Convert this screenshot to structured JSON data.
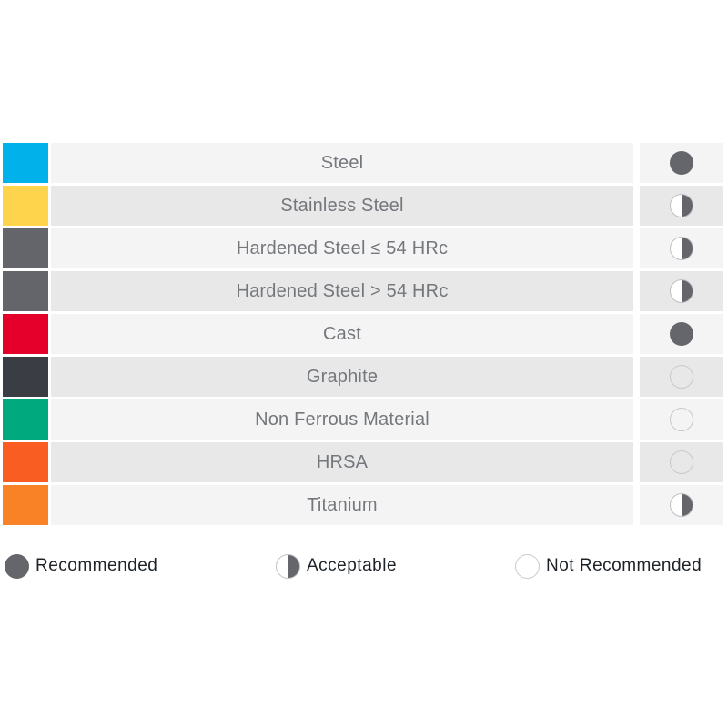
{
  "colors": {
    "row_bg_light": "#f4f4f5",
    "row_bg_dark": "#e8e8e9",
    "label_text": "#74777c",
    "rating_fill": "#64666b",
    "empty_circle_border": "#c9c9c9",
    "legend_text": "#1c2227"
  },
  "chart_data": {
    "type": "table",
    "columns": [
      "material_color",
      "material",
      "suitability"
    ],
    "rows": [
      {
        "material": "Steel",
        "swatch_color": "#00b1ea",
        "rating": "recommended",
        "rating_label": "Recommended"
      },
      {
        "material": "Stainless Steel",
        "swatch_color": "#ffd44d",
        "rating": "acceptable",
        "rating_label": "Acceptable"
      },
      {
        "material": "Hardened Steel ≤ 54 HRc",
        "swatch_color": "#63656a",
        "rating": "acceptable",
        "rating_label": "Acceptable"
      },
      {
        "material": "Hardened Steel > 54 HRc",
        "swatch_color": "#63656a",
        "rating": "acceptable",
        "rating_label": "Acceptable"
      },
      {
        "material": "Cast",
        "swatch_color": "#e4002b",
        "rating": "recommended",
        "rating_label": "Recommended"
      },
      {
        "material": "Graphite",
        "swatch_color": "#3a3e44",
        "rating": "not_recommended",
        "rating_label": "Not Recommended"
      },
      {
        "material": "Non Ferrous Material",
        "swatch_color": "#00aa7e",
        "rating": "not_recommended",
        "rating_label": "Not Recommended"
      },
      {
        "material": "HRSA",
        "swatch_color": "#f95d22",
        "rating": "not_recommended",
        "rating_label": "Not Recommended"
      },
      {
        "material": "Titanium",
        "swatch_color": "#fa8226",
        "rating": "acceptable",
        "rating_label": "Acceptable"
      }
    ],
    "legend": [
      {
        "label": "Recommended",
        "rating": "recommended"
      },
      {
        "label": "Acceptable",
        "rating": "acceptable"
      },
      {
        "label": "Not Recommended",
        "rating": "not_recommended"
      }
    ]
  }
}
